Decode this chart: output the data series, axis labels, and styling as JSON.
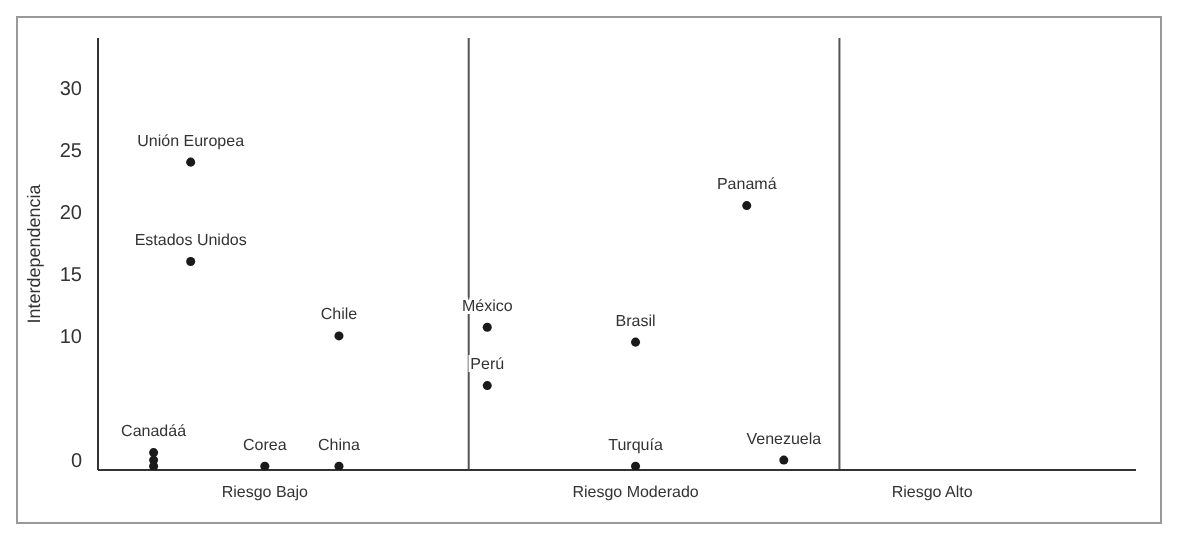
{
  "chart_data": {
    "type": "scatter",
    "ylabel": "Interdependencia",
    "categories": [
      null,
      null,
      null,
      null,
      "Riesgo Bajo",
      null,
      null,
      null,
      null,
      null,
      null,
      null,
      null,
      null,
      "Riesgo Moderado",
      null,
      null,
      null,
      null,
      null,
      null,
      null,
      "Riesgo Alto",
      null,
      null,
      null,
      null,
      null
    ],
    "series": [
      {
        "name": "Canadáá",
        "color": "#1a1a1a",
        "values": [
          null,
          0.6,
          null,
          null,
          null,
          null,
          null,
          null,
          null,
          null,
          null,
          null,
          null,
          null,
          null,
          null,
          null,
          null,
          null,
          null,
          null,
          null,
          null,
          null,
          null,
          null,
          null,
          null
        ]
      },
      {
        "color": "#1a1a1a",
        "values": [
          null,
          0,
          null,
          null,
          null,
          null,
          null,
          null,
          null,
          null,
          null,
          null,
          null,
          null,
          null,
          null,
          null,
          null,
          null,
          null,
          null,
          null,
          null,
          null,
          null,
          null,
          null,
          null
        ]
      },
      {
        "color": "#1a1a1a",
        "values": [
          null,
          -0.5,
          null,
          null,
          null,
          null,
          null,
          null,
          null,
          null,
          null,
          null,
          null,
          null,
          null,
          null,
          null,
          null,
          null,
          null,
          null,
          null,
          null,
          null,
          null,
          null,
          null,
          null
        ]
      },
      {
        "name": "Unión Europea",
        "color": "#1a1a1a",
        "values": [
          null,
          null,
          24,
          null,
          null,
          null,
          null,
          null,
          null,
          null,
          null,
          null,
          null,
          null,
          null,
          null,
          null,
          null,
          null,
          null,
          null,
          null,
          null,
          null,
          null,
          null,
          null,
          null
        ]
      },
      {
        "name": "Estados Unidos",
        "color": "#1a1a1a",
        "values": [
          null,
          null,
          16,
          null,
          null,
          null,
          null,
          null,
          null,
          null,
          null,
          null,
          null,
          null,
          null,
          null,
          null,
          null,
          null,
          null,
          null,
          null,
          null,
          null,
          null,
          null,
          null,
          null
        ]
      },
      {
        "name": "Corea",
        "color": "#1a1a1a",
        "values": [
          null,
          null,
          null,
          null,
          -0.5,
          null,
          null,
          null,
          null,
          null,
          null,
          null,
          null,
          null,
          null,
          null,
          null,
          null,
          null,
          null,
          null,
          null,
          null,
          null,
          null,
          null,
          null,
          null
        ]
      },
      {
        "name": "Chile",
        "color": "#1a1a1a",
        "values": [
          null,
          null,
          null,
          null,
          null,
          null,
          10,
          null,
          null,
          null,
          null,
          null,
          null,
          null,
          null,
          null,
          null,
          null,
          null,
          null,
          null,
          null,
          null,
          null,
          null,
          null,
          null,
          null
        ]
      },
      {
        "name": "China",
        "color": "#1a1a1a",
        "values": [
          null,
          null,
          null,
          null,
          null,
          null,
          -0.5,
          null,
          null,
          null,
          null,
          null,
          null,
          null,
          null,
          null,
          null,
          null,
          null,
          null,
          null,
          null,
          null,
          null,
          null,
          null,
          null,
          null
        ]
      },
      {
        "name": "México",
        "color": "#1a1a1a",
        "values": [
          null,
          null,
          null,
          null,
          null,
          null,
          null,
          null,
          null,
          null,
          10.7,
          null,
          null,
          null,
          null,
          null,
          null,
          null,
          null,
          null,
          null,
          null,
          null,
          null,
          null,
          null,
          null,
          null
        ]
      },
      {
        "name": "Perú",
        "color": "#1a1a1a",
        "values": [
          null,
          null,
          null,
          null,
          null,
          null,
          null,
          null,
          null,
          null,
          6,
          null,
          null,
          null,
          null,
          null,
          null,
          null,
          null,
          null,
          null,
          null,
          null,
          null,
          null,
          null,
          null,
          null
        ]
      },
      {
        "name": "Brasil",
        "color": "#1a1a1a",
        "values": [
          null,
          null,
          null,
          null,
          null,
          null,
          null,
          null,
          null,
          null,
          null,
          null,
          null,
          null,
          9.5,
          null,
          null,
          null,
          null,
          null,
          null,
          null,
          null,
          null,
          null,
          null,
          null,
          null
        ]
      },
      {
        "name": "Turquía",
        "color": "#1a1a1a",
        "values": [
          null,
          null,
          null,
          null,
          null,
          null,
          null,
          null,
          null,
          null,
          null,
          null,
          null,
          null,
          -0.5,
          null,
          null,
          null,
          null,
          null,
          null,
          null,
          null,
          null,
          null,
          null,
          null,
          null
        ]
      },
      {
        "name": "Panamá",
        "color": "#1a1a1a",
        "values": [
          null,
          null,
          null,
          null,
          null,
          null,
          null,
          null,
          null,
          null,
          null,
          null,
          null,
          null,
          null,
          null,
          null,
          20.5,
          null,
          null,
          null,
          null,
          null,
          null,
          null,
          null,
          null,
          null
        ]
      },
      {
        "name": "Venezuela",
        "color": "#1a1a1a",
        "values": [
          null,
          null,
          null,
          null,
          null,
          null,
          null,
          null,
          null,
          null,
          null,
          null,
          null,
          null,
          null,
          null,
          null,
          null,
          0,
          null,
          null,
          null,
          null,
          null,
          null,
          null,
          null,
          null
        ]
      }
    ],
    "marker": "circle",
    "ylim": [
      -0.8,
      34
    ],
    "yticks": [
      0,
      10,
      15,
      20,
      25,
      30
    ],
    "grid": false,
    "legend": false
  }
}
